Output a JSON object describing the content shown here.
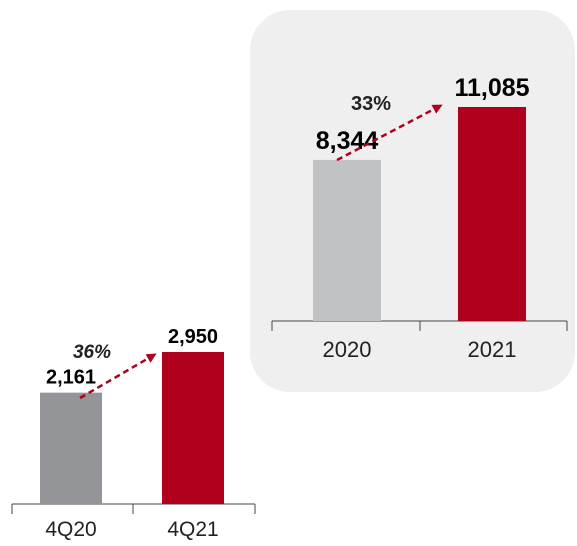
{
  "chart_data": [
    {
      "type": "bar",
      "categories": [
        "4Q20",
        "4Q21"
      ],
      "values": [
        2161,
        2950
      ],
      "value_labels": [
        "2,161",
        "2,950"
      ],
      "growth_label": "36%",
      "colors": [
        "#939598",
        "#b0001e"
      ],
      "ylim": [
        0,
        3400
      ]
    },
    {
      "type": "bar",
      "categories": [
        "2020",
        "2021"
      ],
      "values": [
        8344,
        11085
      ],
      "value_labels": [
        "8,344",
        "11,085"
      ],
      "growth_label": "33%",
      "colors": [
        "#c0c2c3",
        "#b0001e"
      ],
      "ylim": [
        0,
        13200
      ]
    }
  ],
  "arrow_color": "#b0001e",
  "panel_color": "#efefef"
}
